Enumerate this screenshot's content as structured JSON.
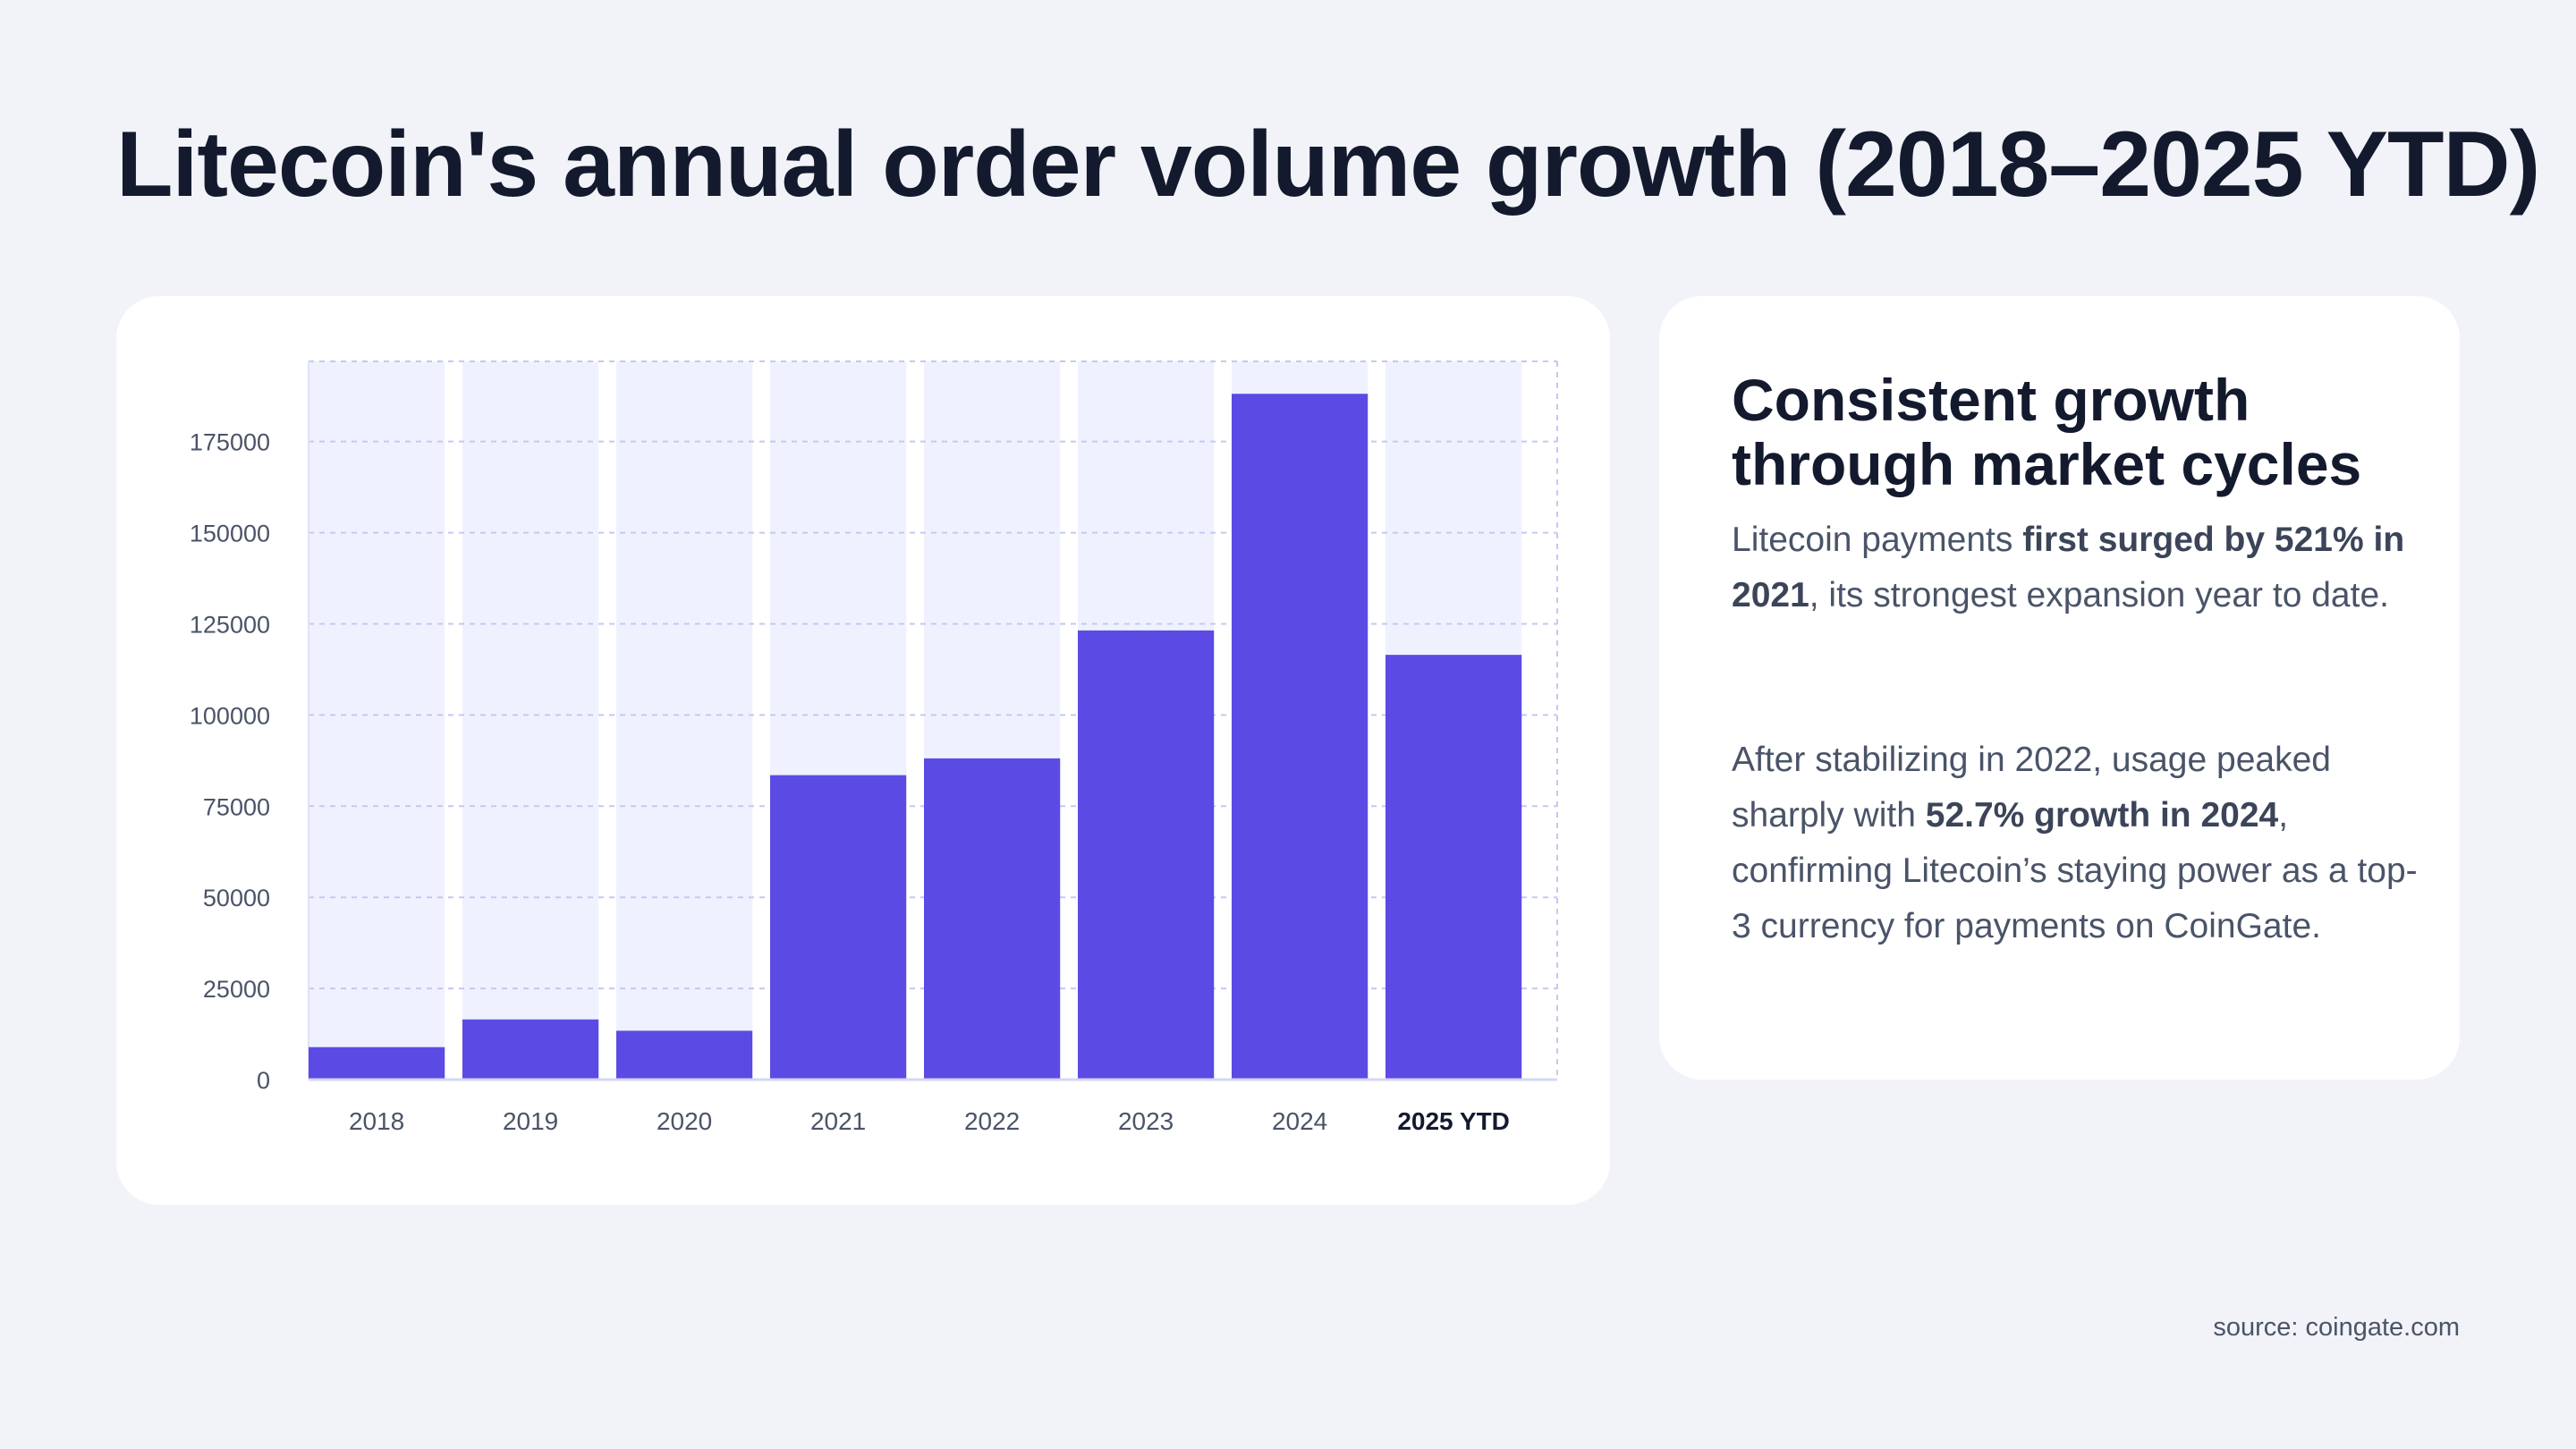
{
  "title": "Litecoin's annual order volume growth (2018–2025 YTD)",
  "chart_data": {
    "type": "bar",
    "title": "",
    "xlabel": "",
    "ylabel": "",
    "categories": [
      "2018",
      "2019",
      "2020",
      "2021",
      "2022",
      "2023",
      "2024",
      "2025 YTD"
    ],
    "values": [
      8900,
      16500,
      13400,
      83500,
      88100,
      123200,
      188100,
      116500
    ],
    "ylim": [
      0,
      197000
    ],
    "yticks": [
      0,
      25000,
      50000,
      75000,
      100000,
      125000,
      150000,
      175000
    ],
    "grid": true,
    "highlighted_category": "2025 YTD",
    "colors": {
      "bar": "#5b4ae4",
      "bar_background": "#eff2fe",
      "grid": "#c5c8f2",
      "tick_label": "#4a5468",
      "highlight_label": "#141a2e"
    }
  },
  "side_panel": {
    "heading": "Consistent growth through market cycles",
    "paragraph1": {
      "pre": "Litecoin payments ",
      "bold": "first surged by 521% in 2021",
      "post": ", its strongest expansion year to date."
    },
    "paragraph2": {
      "pre": "After stabilizing in 2022, usage peaked sharply with ",
      "bold": "52.7% growth in 2024",
      "post": ", confirming Litecoin’s staying power as a top-3 currency for payments on CoinGate."
    }
  },
  "source": "source: coingate.com"
}
